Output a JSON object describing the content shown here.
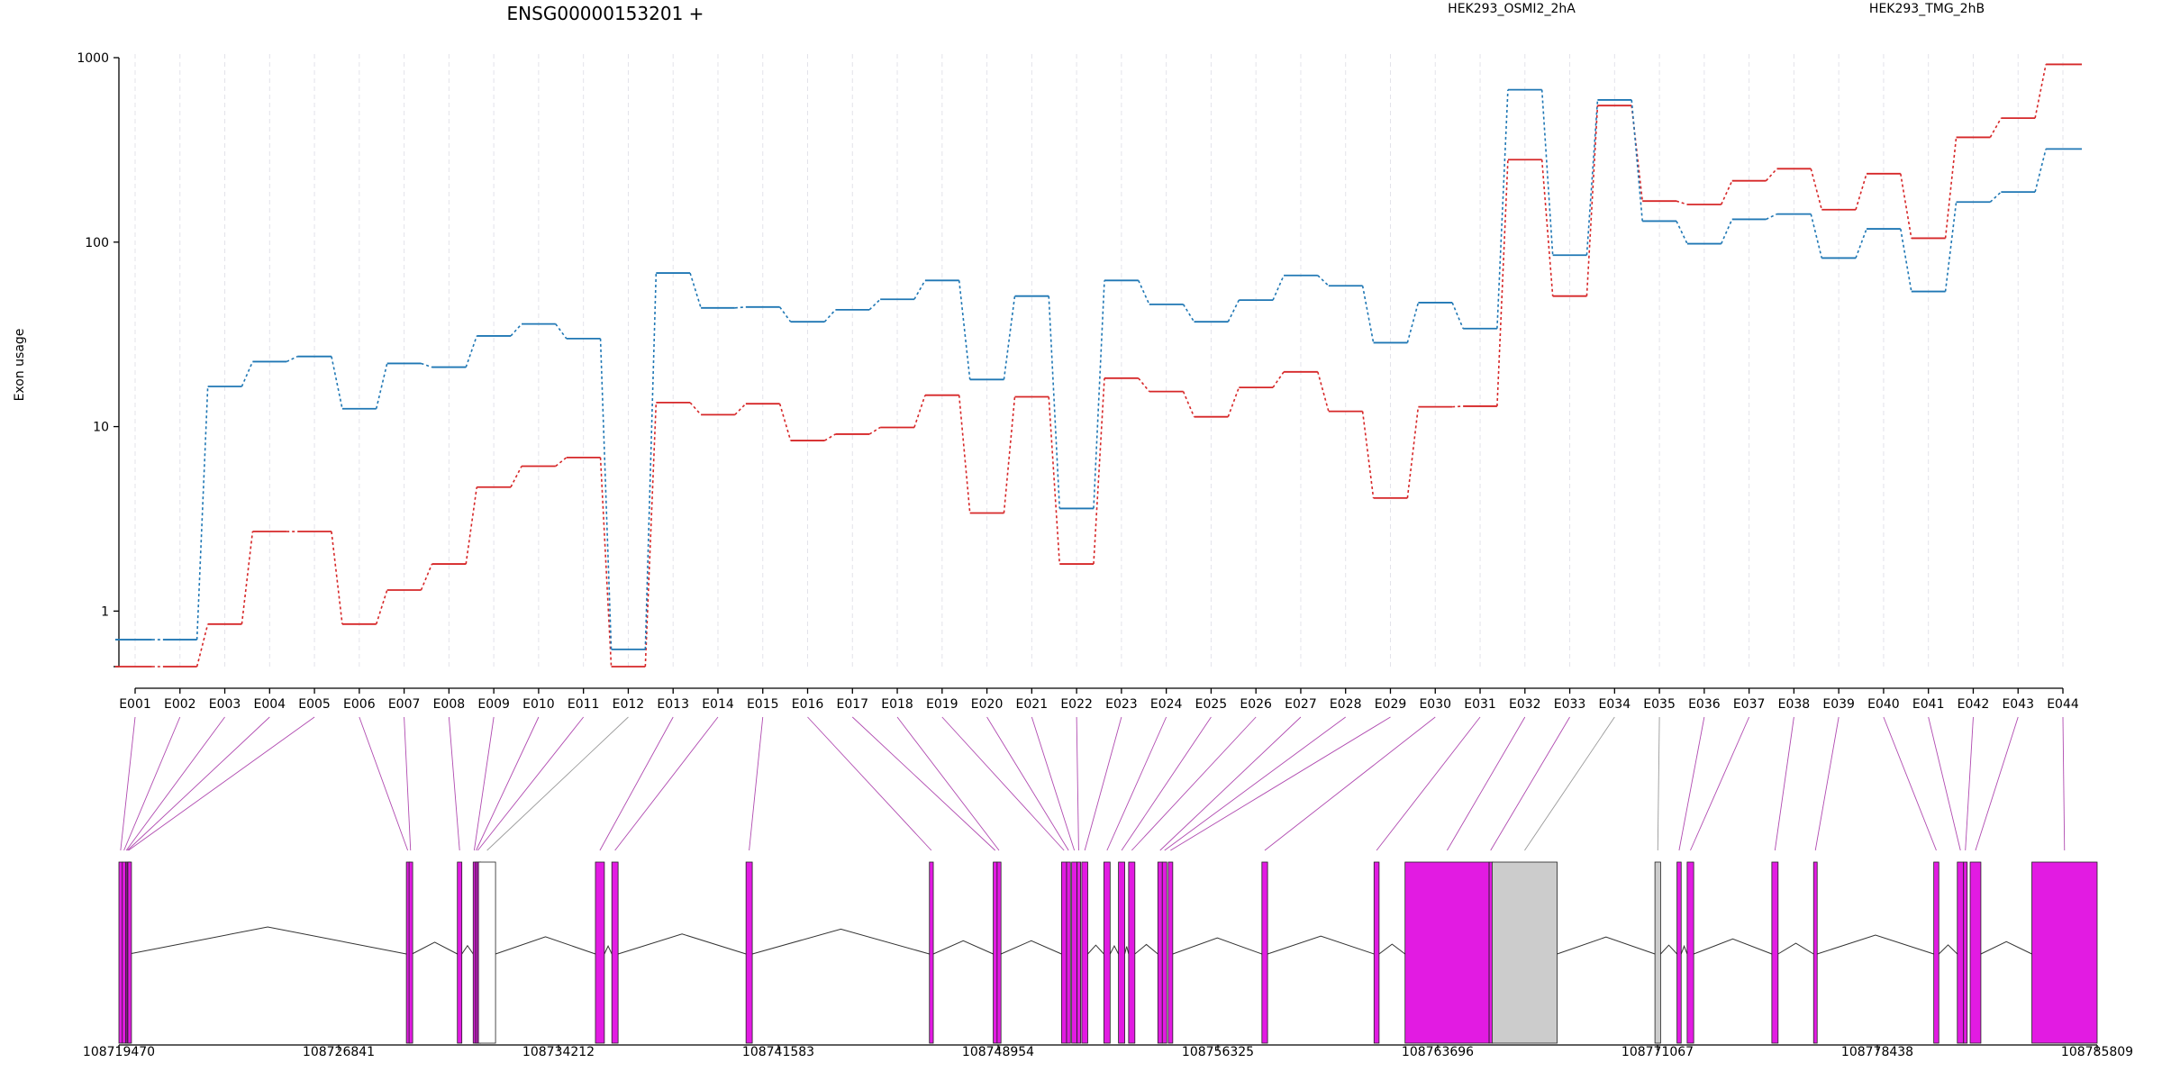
{
  "chart_data": {
    "type": "line",
    "title": "ENSG00000153201 +",
    "ylabel": "Exon usage",
    "yscale": "log",
    "ylim": [
      0.5,
      1000
    ],
    "yticks": [
      {
        "value": 1,
        "label": "1"
      },
      {
        "value": 10,
        "label": "10"
      },
      {
        "value": 100,
        "label": "100"
      },
      {
        "value": 1000,
        "label": "1000"
      }
    ],
    "grid": "vertical",
    "legend_position": "top",
    "categories": [
      "E001",
      "E002",
      "E003",
      "E004",
      "E005",
      "E006",
      "E007",
      "E008",
      "E009",
      "E010",
      "E011",
      "E012",
      "E013",
      "E014",
      "E015",
      "E016",
      "E017",
      "E018",
      "E019",
      "E020",
      "E021",
      "E022",
      "E023",
      "E024",
      "E025",
      "E026",
      "E027",
      "E028",
      "E029",
      "E030",
      "E031",
      "E032",
      "E033",
      "E034",
      "E035",
      "E036",
      "E037",
      "E038",
      "E039",
      "E040",
      "E041",
      "E042",
      "E043",
      "E044"
    ],
    "series": [
      {
        "name": "HEK293_OSMI2_2hA",
        "color": "#d62728",
        "values": [
          0.5,
          0.5,
          0.85,
          2.7,
          2.7,
          0.85,
          1.3,
          1.8,
          4.7,
          6.1,
          6.8,
          0.5,
          13.5,
          11.6,
          13.3,
          8.4,
          9.1,
          9.9,
          14.8,
          3.4,
          14.5,
          1.8,
          18.3,
          15.5,
          11.3,
          16.3,
          19.8,
          12.1,
          4.1,
          12.8,
          12.9,
          280,
          51,
          550,
          167,
          160,
          215,
          250,
          150,
          235,
          105,
          370,
          470,
          920
        ]
      },
      {
        "name": "HEK293_TMG_2hB",
        "color": "#1f77b4",
        "values": [
          0.7,
          0.7,
          16.5,
          22.5,
          24,
          12.5,
          22,
          21,
          31,
          36,
          30,
          0.62,
          68,
          44,
          44.5,
          37,
          43,
          49,
          62,
          18,
          51,
          3.6,
          62,
          46,
          37,
          48.5,
          66,
          58,
          28.5,
          47,
          34,
          670,
          85,
          590,
          130,
          98,
          133,
          142,
          82,
          118,
          54,
          165,
          187,
          320
        ]
      }
    ],
    "gene_model": {
      "coordinate_ticks": [
        "108719470",
        "108726841",
        "108734212",
        "108741583",
        "108748954",
        "108756325",
        "108763696",
        "108771067",
        "108778438",
        "108785809"
      ],
      "coord_range": [
        108719470,
        108785809
      ],
      "exons": [
        {
          "id": "E001",
          "start": 108719470,
          "end": 108719583,
          "color": "#e21be2"
        },
        {
          "id": "E002",
          "start": 108719583,
          "end": 108719695,
          "color": "#e21be2"
        },
        {
          "id": "E003",
          "start": 108719695,
          "end": 108719740,
          "color": "#e21be2"
        },
        {
          "id": "E004",
          "start": 108719740,
          "end": 108719770,
          "color": "#e21be2"
        },
        {
          "id": "E005",
          "start": 108719770,
          "end": 108719810,
          "color": "#e21be2"
        },
        {
          "id": "E006",
          "start": 108729110,
          "end": 108729200,
          "color": "#e21be2"
        },
        {
          "id": "E007",
          "start": 108729200,
          "end": 108729300,
          "color": "#e21be2"
        },
        {
          "id": "E008",
          "start": 108730820,
          "end": 108730970,
          "color": "#e21be2"
        },
        {
          "id": "E009",
          "start": 108731350,
          "end": 108731420,
          "color": "#e21be2"
        },
        {
          "id": "E010",
          "start": 108731420,
          "end": 108731480,
          "color": "#e21be2"
        },
        {
          "id": "E011",
          "start": 108731480,
          "end": 108731530,
          "color": "#e21be2"
        },
        {
          "id": "E012",
          "start": 108731530,
          "end": 108732100,
          "color": "#ffffff"
        },
        {
          "id": "E013",
          "start": 108735450,
          "end": 108735750,
          "color": "#e21be2"
        },
        {
          "id": "E014",
          "start": 108736000,
          "end": 108736210,
          "color": "#e21be2"
        },
        {
          "id": "E015",
          "start": 108740500,
          "end": 108740710,
          "color": "#e21be2"
        },
        {
          "id": "E016",
          "start": 108746650,
          "end": 108746780,
          "color": "#e21be2"
        },
        {
          "id": "E017",
          "start": 108748790,
          "end": 108748920,
          "color": "#e21be2"
        },
        {
          "id": "E018",
          "start": 108748920,
          "end": 108749050,
          "color": "#e21be2"
        },
        {
          "id": "E019",
          "start": 108751080,
          "end": 108751250,
          "color": "#e21be2"
        },
        {
          "id": "E020",
          "start": 108751250,
          "end": 108751380,
          "color": "#e21be2"
        },
        {
          "id": "E021",
          "start": 108751420,
          "end": 108751600,
          "color": "#e21be2"
        },
        {
          "id": "E022",
          "start": 108751600,
          "end": 108751710,
          "color": "#e21be2"
        },
        {
          "id": "E023",
          "start": 108751760,
          "end": 108751960,
          "color": "#e21be2"
        },
        {
          "id": "E024",
          "start": 108752500,
          "end": 108752710,
          "color": "#e21be2"
        },
        {
          "id": "E025",
          "start": 108752990,
          "end": 108753200,
          "color": "#e21be2"
        },
        {
          "id": "E026",
          "start": 108753330,
          "end": 108753540,
          "color": "#e21be2"
        },
        {
          "id": "E027",
          "start": 108754310,
          "end": 108754460,
          "color": "#e21be2"
        },
        {
          "id": "E028",
          "start": 108754460,
          "end": 108754610,
          "color": "#e21be2"
        },
        {
          "id": "E029",
          "start": 108754660,
          "end": 108754810,
          "color": "#e21be2"
        },
        {
          "id": "E030",
          "start": 108757800,
          "end": 108757990,
          "color": "#e21be2"
        },
        {
          "id": "E031",
          "start": 108761560,
          "end": 108761730,
          "color": "#e21be2"
        },
        {
          "id": "E032",
          "start": 108762600,
          "end": 108765420,
          "color": "#e21be2"
        },
        {
          "id": "E033",
          "start": 108765420,
          "end": 108765520,
          "color": "#e21be2"
        },
        {
          "id": "E034",
          "start": 108765520,
          "end": 108767700,
          "color": "#cccccc"
        },
        {
          "id": "E035",
          "start": 108770980,
          "end": 108771170,
          "color": "#cccccc"
        },
        {
          "id": "E036",
          "start": 108771720,
          "end": 108771860,
          "color": "#e21be2"
        },
        {
          "id": "E037",
          "start": 108772060,
          "end": 108772280,
          "color": "#e21be2"
        },
        {
          "id": "E038",
          "start": 108774900,
          "end": 108775110,
          "color": "#e21be2"
        },
        {
          "id": "E039",
          "start": 108776300,
          "end": 108776420,
          "color": "#e21be2"
        },
        {
          "id": "E040",
          "start": 108780330,
          "end": 108780500,
          "color": "#e21be2"
        },
        {
          "id": "E041",
          "start": 108781120,
          "end": 108781330,
          "color": "#e21be2"
        },
        {
          "id": "E042",
          "start": 108781330,
          "end": 108781450,
          "color": "#e21be2"
        },
        {
          "id": "E043",
          "start": 108781550,
          "end": 108781910,
          "color": "#e21be2"
        },
        {
          "id": "E044",
          "start": 108783620,
          "end": 108785809,
          "color": "#e21be2"
        }
      ]
    }
  }
}
